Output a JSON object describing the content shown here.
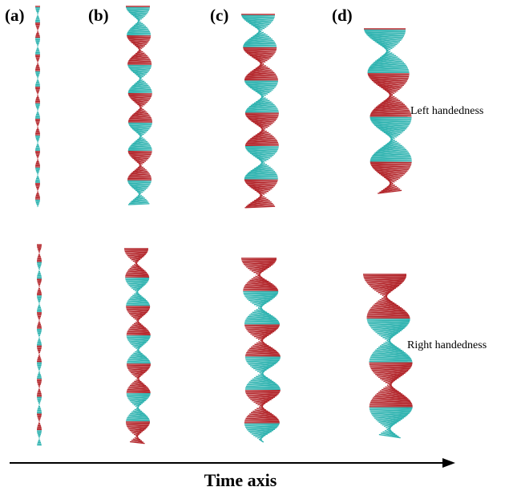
{
  "panels": [
    "(a)",
    "(b)",
    "(c)",
    "(d)"
  ],
  "annotations": {
    "left": "Left handedness",
    "right": "Right handedness"
  },
  "axis_label": "Time axis"
}
